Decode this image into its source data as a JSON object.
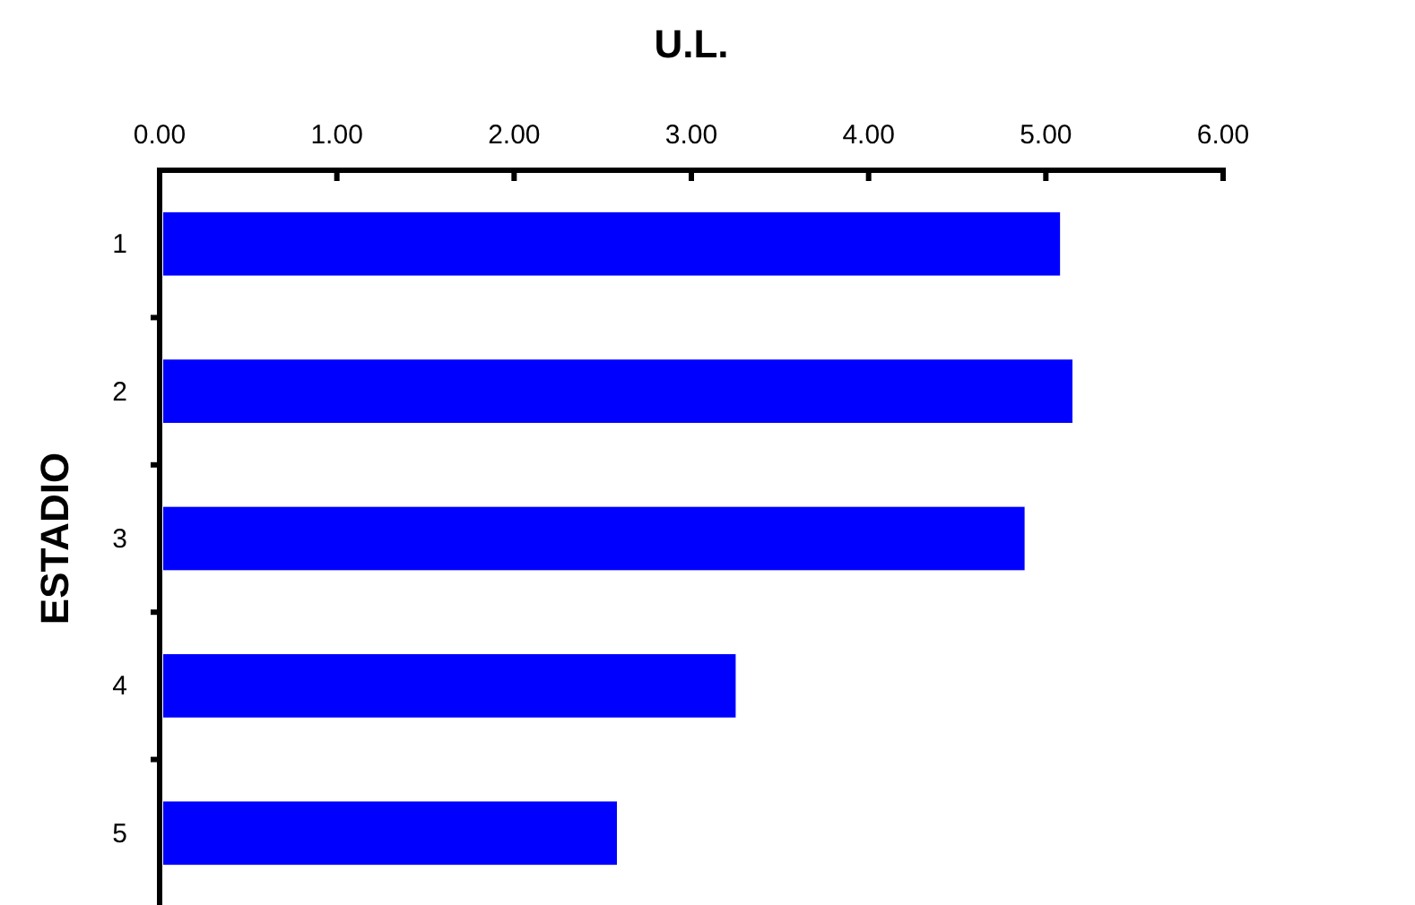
{
  "chart_data": {
    "type": "bar",
    "orientation": "horizontal",
    "xlabel": "U.L.",
    "ylabel": "ESTADIO",
    "categories": [
      "1",
      "2",
      "3",
      "4",
      "5"
    ],
    "values": [
      5.08,
      5.15,
      4.88,
      3.25,
      2.58
    ],
    "color": "#0000ff",
    "xlim": [
      0,
      6
    ],
    "xticks": [
      {
        "value": 0,
        "label": "0.00"
      },
      {
        "value": 1,
        "label": "1.00"
      },
      {
        "value": 2,
        "label": "2.00"
      },
      {
        "value": 3,
        "label": "3.00"
      },
      {
        "value": 4,
        "label": "4.00"
      },
      {
        "value": 5,
        "label": "5.00"
      },
      {
        "value": 6,
        "label": "6.00"
      }
    ],
    "grid": false
  }
}
